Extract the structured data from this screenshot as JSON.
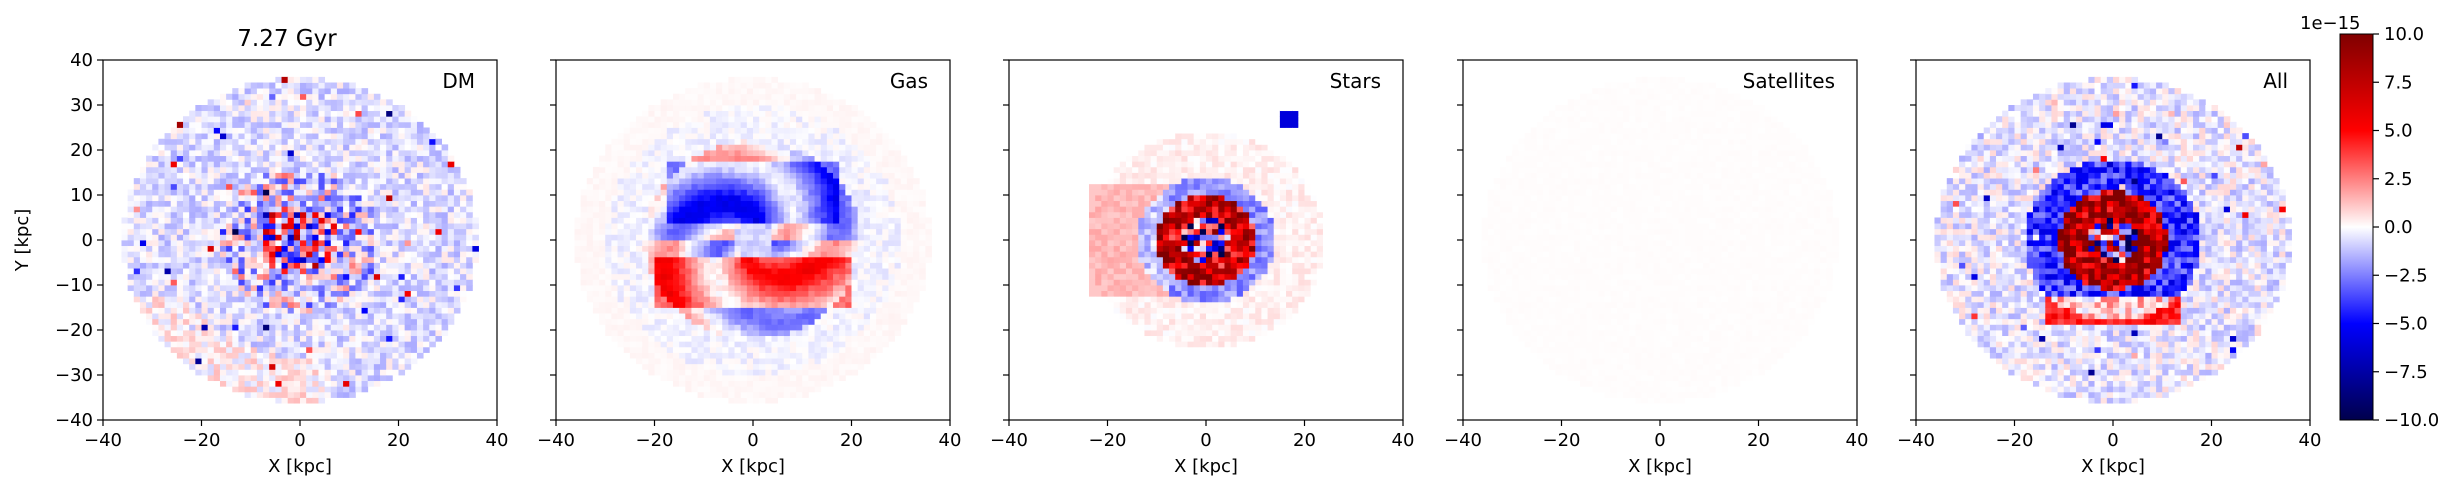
{
  "figure": {
    "time_label": "7.27 Gyr",
    "xlabel": "X [kpc]",
    "ylabel": "Y [kpc]",
    "colorbar_offset_label": "1e−15"
  },
  "chart_data": {
    "type": "heatmap",
    "title": "7.27 Gyr",
    "xlim": [
      -40,
      40
    ],
    "ylim": [
      -40,
      40
    ],
    "x_ticks": [
      -40,
      -20,
      0,
      20,
      40
    ],
    "y_ticks": [
      -40,
      -30,
      -20,
      -10,
      0,
      10,
      20,
      30,
      40
    ],
    "x_tick_labels": [
      "−40",
      "−20",
      "0",
      "20",
      "40"
    ],
    "y_tick_labels": [
      "−40",
      "−30",
      "−20",
      "−10",
      "0",
      "10",
      "20",
      "30",
      "40"
    ],
    "xlabel": "X [kpc]",
    "ylabel": "Y [kpc]",
    "colorscale": {
      "name": "seismic",
      "min": -10.0,
      "max": 10.0,
      "multiplier": "1e−15",
      "ticks": [
        10.0,
        7.5,
        5.0,
        2.5,
        0.0,
        -2.5,
        -5.0,
        -7.5,
        -10.0
      ],
      "tick_labels": [
        "10.0",
        "7.5",
        "5.0",
        "2.5",
        "0.0",
        "−2.5",
        "−5.0",
        "−7.5",
        "−10.0"
      ],
      "colors": [
        "#00004c",
        "#0000ff",
        "#ffffff",
        "#ff0000",
        "#800000"
      ]
    },
    "map_radius_kpc": 36,
    "grid": false,
    "panels": [
      {
        "label": "DM",
        "features": "noisy particle field; positive/negative mix near center, faint red outer rim at lower left"
      },
      {
        "label": "Gas",
        "features": "spiral structure; blue arms above center, red arc below center"
      },
      {
        "label": "Stars",
        "features": "concentrated central red core with blue inner center, faint red halo to the left"
      },
      {
        "label": "Satellites",
        "features": "near-zero everywhere"
      },
      {
        "label": "All",
        "features": "sum of components; strong red central core, blue ring, red arc below"
      }
    ]
  }
}
